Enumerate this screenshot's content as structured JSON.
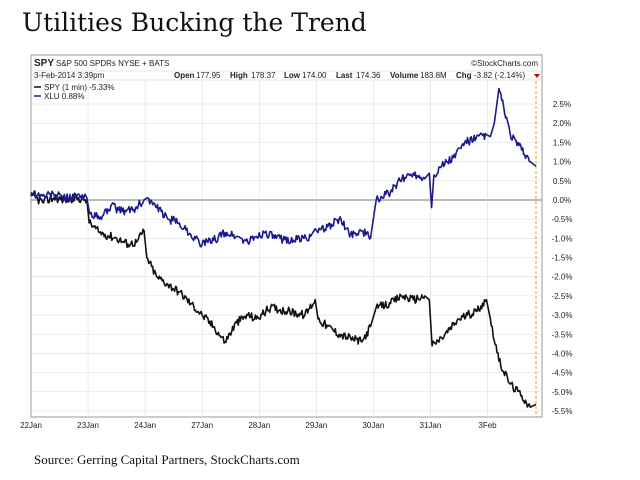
{
  "page": {
    "title": "Utilities Bucking the Trend",
    "source": "Source: Gerring Capital Partners, StockCharts.com"
  },
  "chart_header": {
    "symbol": "SPY",
    "symbol_desc": "S&P 500 SPDRs NYSE + BATS",
    "watermark": "©StockCharts.com",
    "date": "3-Feb-2014 3:39pm",
    "open_label": "Open",
    "open_value": "177.95",
    "high_label": "High",
    "high_value": "178.37",
    "low_label": "Low",
    "low_value": "174.00",
    "last_label": "Last",
    "last_value": "174.36",
    "volume_label": "Volume",
    "volume_value": "183.8M",
    "chg_label": "Chg",
    "chg_value": "-3.82 (-2.14%)",
    "chg_icon": "down-triangle-icon"
  },
  "legend": [
    {
      "label": "SPY (1 min) -5.33%",
      "color": "#111111"
    },
    {
      "label": "XLU 0.88%",
      "color": "#1c1a8c"
    }
  ],
  "chart_data": {
    "type": "line",
    "x_tick_labels": [
      "22Jan",
      "23Jan",
      "24Jan",
      "27Jan",
      "28Jan",
      "29Jan",
      "30Jan",
      "31Jan",
      "3Feb"
    ],
    "y_tick_labels": [
      "2.5%",
      "2.0%",
      "1.5%",
      "1.0%",
      "0.5%",
      "0.0%",
      "-0.5%",
      "-1.0%",
      "-1.5%",
      "-2.0%",
      "-2.5%",
      "-3.0%",
      "-3.5%",
      "-4.0%",
      "-4.5%",
      "-5.0%",
      "-5.5%"
    ],
    "ylim": [
      -5.5,
      2.5
    ],
    "x_range": [
      0,
      8.85
    ],
    "grid": true,
    "legend_position": "top-left",
    "series": [
      {
        "name": "SPY (1 min) -5.33%",
        "color": "#111111",
        "x": [
          0,
          0.2,
          0.4,
          0.6,
          0.8,
          0.98,
          1.02,
          1.2,
          1.5,
          1.7,
          1.85,
          1.98,
          2.03,
          2.2,
          2.4,
          2.6,
          2.8,
          3.0,
          3.2,
          3.4,
          3.6,
          3.8,
          3.95,
          4.2,
          4.5,
          4.8,
          4.98,
          5.03,
          5.2,
          5.4,
          5.6,
          5.8,
          5.95,
          6.05,
          6.3,
          6.5,
          6.7,
          6.9,
          6.98,
          7.03,
          7.2,
          7.5,
          7.8,
          7.98,
          8.05,
          8.2,
          8.4,
          8.6,
          8.75,
          8.85
        ],
        "values": [
          0.1,
          -0.05,
          0.05,
          0.0,
          0.05,
          0.0,
          -0.6,
          -0.85,
          -1.0,
          -1.15,
          -1.1,
          -0.8,
          -1.5,
          -2.0,
          -2.2,
          -2.4,
          -2.7,
          -3.0,
          -3.3,
          -3.7,
          -3.2,
          -3.0,
          -3.1,
          -2.8,
          -2.9,
          -3.0,
          -2.6,
          -3.1,
          -3.3,
          -3.5,
          -3.6,
          -3.7,
          -3.3,
          -2.8,
          -2.7,
          -2.5,
          -2.6,
          -2.5,
          -2.6,
          -3.8,
          -3.6,
          -3.1,
          -2.9,
          -2.6,
          -3.1,
          -4.2,
          -4.8,
          -5.1,
          -5.4,
          -5.33
        ]
      },
      {
        "name": "XLU 0.88%",
        "color": "#1c1a8c",
        "x": [
          0,
          0.2,
          0.4,
          0.6,
          0.8,
          0.98,
          1.02,
          1.2,
          1.4,
          1.6,
          1.8,
          1.98,
          2.03,
          2.2,
          2.4,
          2.6,
          2.8,
          3.0,
          3.2,
          3.4,
          3.6,
          3.8,
          3.95,
          4.1,
          4.3,
          4.6,
          4.9,
          4.98,
          5.03,
          5.2,
          5.4,
          5.6,
          5.8,
          5.95,
          6.05,
          6.3,
          6.5,
          6.7,
          6.9,
          6.98,
          7.02,
          7.06,
          7.2,
          7.4,
          7.6,
          7.8,
          7.98,
          8.05,
          8.12,
          8.2,
          8.4,
          8.6,
          8.75,
          8.85
        ],
        "values": [
          0.2,
          0.1,
          0.15,
          0.05,
          0.1,
          0.05,
          -0.3,
          -0.5,
          -0.15,
          -0.3,
          -0.25,
          0.0,
          0.05,
          -0.2,
          -0.5,
          -0.6,
          -0.9,
          -1.15,
          -1.05,
          -0.85,
          -0.95,
          -1.1,
          -0.95,
          -0.85,
          -1.0,
          -1.05,
          -0.95,
          -0.75,
          -0.85,
          -0.7,
          -0.5,
          -0.9,
          -0.8,
          -1.0,
          0.0,
          0.2,
          0.55,
          0.7,
          0.55,
          0.7,
          -0.2,
          0.65,
          0.9,
          1.1,
          1.5,
          1.6,
          1.7,
          1.65,
          2.0,
          2.9,
          1.7,
          1.3,
          1.0,
          0.88
        ]
      }
    ]
  }
}
